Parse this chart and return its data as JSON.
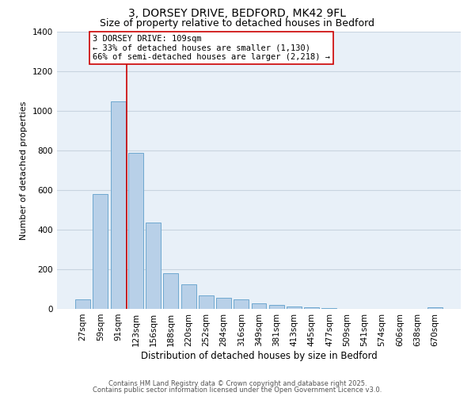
{
  "title": "3, DORSEY DRIVE, BEDFORD, MK42 9FL",
  "subtitle": "Size of property relative to detached houses in Bedford",
  "xlabel": "Distribution of detached houses by size in Bedford",
  "ylabel": "Number of detached properties",
  "bar_color": "#b8d0e8",
  "bar_edge_color": "#6ea8d0",
  "background_color": "#e8f0f8",
  "grid_color": "#c8d4e0",
  "categories": [
    "27sqm",
    "59sqm",
    "91sqm",
    "123sqm",
    "156sqm",
    "188sqm",
    "220sqm",
    "252sqm",
    "284sqm",
    "316sqm",
    "349sqm",
    "381sqm",
    "413sqm",
    "445sqm",
    "477sqm",
    "509sqm",
    "541sqm",
    "574sqm",
    "606sqm",
    "638sqm",
    "670sqm"
  ],
  "values": [
    50,
    580,
    1050,
    790,
    435,
    180,
    125,
    70,
    55,
    50,
    30,
    20,
    12,
    7,
    3,
    0,
    0,
    0,
    0,
    0,
    8
  ],
  "vline_color": "#cc0000",
  "annotation_lines": [
    "3 DORSEY DRIVE: 109sqm",
    "← 33% of detached houses are smaller (1,130)",
    "66% of semi-detached houses are larger (2,218) →"
  ],
  "annotation_fontsize": 7.5,
  "ylim": [
    0,
    1400
  ],
  "yticks": [
    0,
    200,
    400,
    600,
    800,
    1000,
    1200,
    1400
  ],
  "footer1": "Contains HM Land Registry data © Crown copyright and database right 2025.",
  "footer2": "Contains public sector information licensed under the Open Government Licence v3.0.",
  "title_fontsize": 10,
  "subtitle_fontsize": 9,
  "xlabel_fontsize": 8.5,
  "ylabel_fontsize": 8,
  "tick_fontsize": 7.5
}
